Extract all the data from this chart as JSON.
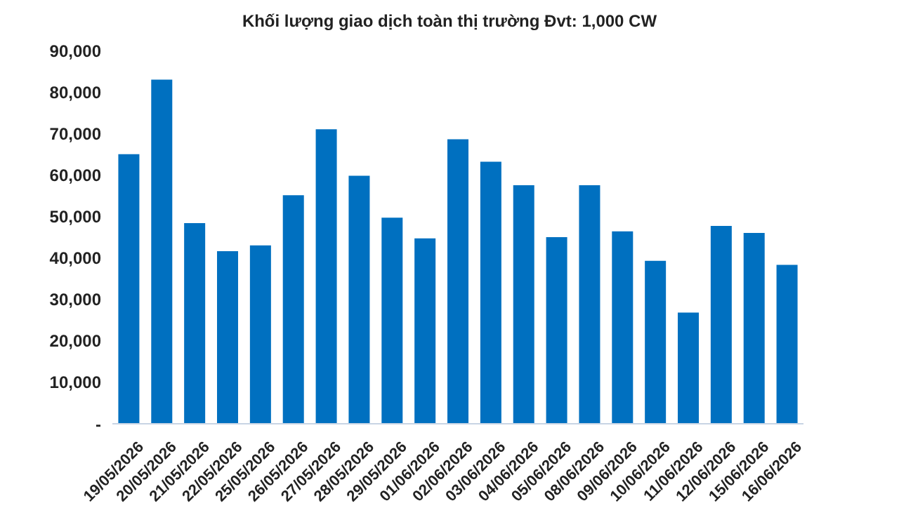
{
  "chart_data": {
    "type": "bar",
    "title": "Khối lượng giao dịch toàn thị trường Đvt: 1,000 CW",
    "categories": [
      "19/05/2026",
      "20/05/2026",
      "21/05/2026",
      "22/05/2026",
      "25/05/2026",
      "26/05/2026",
      "27/05/2026",
      "28/05/2026",
      "29/05/2026",
      "01/06/2026",
      "02/06/2026",
      "03/06/2026",
      "04/06/2026",
      "05/06/2026",
      "08/06/2026",
      "09/06/2026",
      "10/06/2026",
      "11/06/2026",
      "12/06/2026",
      "15/06/2026",
      "16/06/2026"
    ],
    "values": [
      65000,
      83000,
      48400,
      41600,
      43000,
      55100,
      71000,
      59800,
      49700,
      44700,
      68600,
      63200,
      57500,
      45000,
      57500,
      46400,
      39300,
      26800,
      47700,
      46000,
      38300
    ],
    "color": "#0070c0",
    "ylim": [
      0,
      90000
    ],
    "yticks": [
      {
        "value": 0,
        "label": "-"
      },
      {
        "value": 10000,
        "label": "10,000"
      },
      {
        "value": 20000,
        "label": "20,000"
      },
      {
        "value": 30000,
        "label": "30,000"
      },
      {
        "value": 40000,
        "label": "40,000"
      },
      {
        "value": 50000,
        "label": "50,000"
      },
      {
        "value": 60000,
        "label": "60,000"
      },
      {
        "value": 70000,
        "label": "70,000"
      },
      {
        "value": 80000,
        "label": "80,000"
      },
      {
        "value": 90000,
        "label": "90,000"
      }
    ],
    "grid": false,
    "legend": false
  }
}
